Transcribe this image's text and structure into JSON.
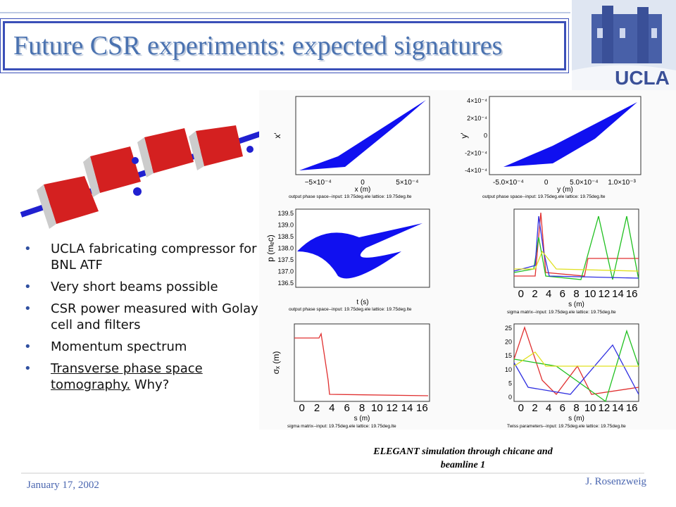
{
  "header": {
    "title": "Future CSR experiments: expected signatures",
    "logo_text": "UCLA"
  },
  "bullets": [
    {
      "text": "UCLA fabricating compressor for BNL ATF"
    },
    {
      "text": "Very short beams possible"
    },
    {
      "text": "CSR power measured with Golay cell and filters"
    },
    {
      "text": "Momentum spectrum"
    },
    {
      "underlined": "Transverse phase space tomography.",
      "text": " Why?"
    }
  ],
  "plots": [
    {
      "ylabel": "x'",
      "xlabel": "x (m)",
      "xticks": [
        "−5×10⁻⁴",
        "0",
        "5×10⁻⁴"
      ],
      "footer": "output phase space--input: 19.75deg.ele    lattice: 19.75deg.lte"
    },
    {
      "ylabel": "y'",
      "xlabel": "y (m)",
      "xticks": [
        "-5.0×10⁻⁴",
        "0",
        "5.0×10⁻⁴",
        "1.0×10⁻³"
      ],
      "yticks": [
        "4×10⁻⁴",
        "2×10⁻⁴",
        "0",
        "-2×10⁻⁴",
        "-4×10⁻⁴"
      ],
      "footer": "output phase space--input: 19.75deg.ele    lattice: 19.75deg.lte"
    },
    {
      "ylabel": "p (mₑc)",
      "xlabel": "t (s)",
      "yticks": [
        "139.5",
        "139.0",
        "138.5",
        "138.0",
        "137.5",
        "137.0",
        "136.5"
      ],
      "footer": "output phase space--input: 19.75deg.ele    lattice: 19.75deg.lte"
    },
    {
      "xlabel": "s (m)",
      "xticks": [
        "0",
        "2",
        "4",
        "6",
        "8",
        "10",
        "12",
        "14",
        "16"
      ],
      "footer": "sigma matrix--input: 19.75deg.ele    lattice: 19.75deg.lte"
    },
    {
      "ylabel": "σₓ (m)",
      "xlabel": "s (m)",
      "xticks": [
        "0",
        "2",
        "4",
        "6",
        "8",
        "10",
        "12",
        "14",
        "16"
      ],
      "footer": "sigma matrix--input: 19.75deg.ele    lattice: 19.75deg.lte"
    },
    {
      "xlabel": "s (m)",
      "xticks": [
        "0",
        "2",
        "4",
        "6",
        "8",
        "10",
        "12",
        "14",
        "16"
      ],
      "yticks": [
        "25",
        "20",
        "15",
        "10",
        "5",
        "0"
      ],
      "footer": "Twiss parameters--input: 19.75deg.ele    lattice: 19.75deg.lte"
    }
  ],
  "caption": "ELEGANT simulation through chicane and beamline 1",
  "footer": {
    "date": "January 17, 2002",
    "author": "J. Rosenzweig"
  }
}
